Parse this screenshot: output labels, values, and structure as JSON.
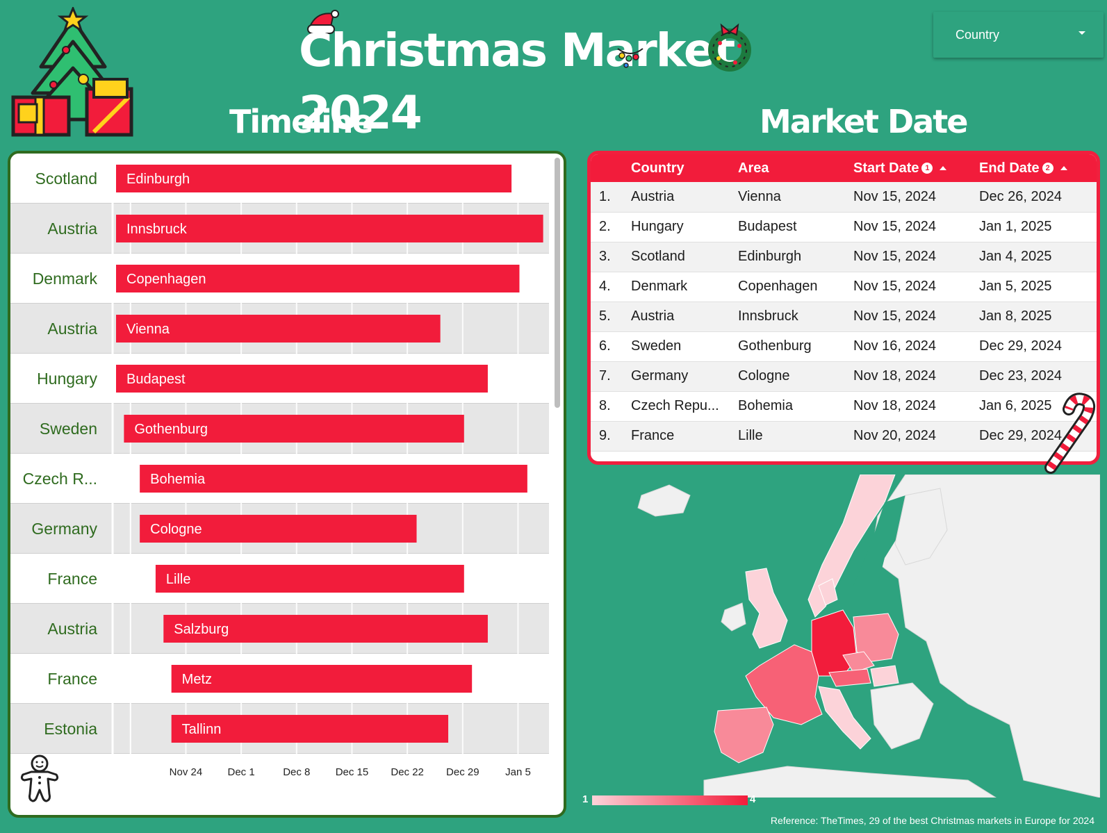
{
  "header": {
    "title": "Christmas Market 2024",
    "timeline_title": "Timeline",
    "market_title": "Market Date"
  },
  "filter": {
    "label": "Country"
  },
  "chart_data": {
    "type": "bar",
    "subtype": "gantt",
    "x_ticks": [
      "Nov 24",
      "Dec 1",
      "Dec 8",
      "Dec 15",
      "Dec 22",
      "Dec 29",
      "Jan 5"
    ],
    "xlim": [
      "2024-11-15",
      "2025-01-09"
    ],
    "grid": true,
    "rows": [
      {
        "country": "Scotland",
        "area": "Edinburgh",
        "start": "2024-11-15",
        "end": "2025-01-04"
      },
      {
        "country": "Austria",
        "area": "Innsbruck",
        "start": "2024-11-15",
        "end": "2025-01-08"
      },
      {
        "country": "Denmark",
        "area": "Copenhagen",
        "start": "2024-11-15",
        "end": "2025-01-05"
      },
      {
        "country": "Austria",
        "area": "Vienna",
        "start": "2024-11-15",
        "end": "2024-12-26"
      },
      {
        "country": "Hungary",
        "area": "Budapest",
        "start": "2024-11-15",
        "end": "2025-01-01"
      },
      {
        "country": "Sweden",
        "area": "Gothenburg",
        "start": "2024-11-16",
        "end": "2024-12-29"
      },
      {
        "country": "Czech R...",
        "area": "Bohemia",
        "start": "2024-11-18",
        "end": "2025-01-06"
      },
      {
        "country": "Germany",
        "area": "Cologne",
        "start": "2024-11-18",
        "end": "2024-12-23"
      },
      {
        "country": "France",
        "area": "Lille",
        "start": "2024-11-20",
        "end": "2024-12-29"
      },
      {
        "country": "Austria",
        "area": "Salzburg",
        "start": "2024-11-21",
        "end": "2025-01-01"
      },
      {
        "country": "France",
        "area": "Metz",
        "start": "2024-11-22",
        "end": "2024-12-30"
      },
      {
        "country": "Estonia",
        "area": "Tallinn",
        "start": "2024-11-22",
        "end": "2024-12-27"
      }
    ]
  },
  "table": {
    "headers": [
      "Country",
      "Area",
      "Start Date",
      "End Date"
    ],
    "sort_badges": [
      "1",
      "2"
    ],
    "rows": [
      {
        "n": "1.",
        "country": "Austria",
        "area": "Vienna",
        "start": "Nov 15, 2024",
        "end": "Dec 26, 2024"
      },
      {
        "n": "2.",
        "country": "Hungary",
        "area": "Budapest",
        "start": "Nov 15, 2024",
        "end": "Jan 1, 2025"
      },
      {
        "n": "3.",
        "country": "Scotland",
        "area": "Edinburgh",
        "start": "Nov 15, 2024",
        "end": "Jan 4, 2025"
      },
      {
        "n": "4.",
        "country": "Denmark",
        "area": "Copenhagen",
        "start": "Nov 15, 2024",
        "end": "Jan 5, 2025"
      },
      {
        "n": "5.",
        "country": "Austria",
        "area": "Innsbruck",
        "start": "Nov 15, 2024",
        "end": "Jan 8, 2025"
      },
      {
        "n": "6.",
        "country": "Sweden",
        "area": "Gothenburg",
        "start": "Nov 16, 2024",
        "end": "Dec 29, 2024"
      },
      {
        "n": "7.",
        "country": "Germany",
        "area": "Cologne",
        "start": "Nov 18, 2024",
        "end": "Dec 23, 2024"
      },
      {
        "n": "8.",
        "country": "Czech Repu...",
        "area": "Bohemia",
        "start": "Nov 18, 2024",
        "end": "Jan 6, 2025"
      },
      {
        "n": "9.",
        "country": "France",
        "area": "Lille",
        "start": "Nov 20, 2024",
        "end": "Dec 29, 2024"
      }
    ]
  },
  "map": {
    "legend_min": "1",
    "legend_max": "4",
    "reference": "Reference: TheTimes, 29 of the best Christmas markets in Europe for 2024"
  },
  "colors": {
    "background": "#2ea37f",
    "bar": "#f21c3b",
    "row_label": "#2f6b1f",
    "timeline_border": "#2f6b1f",
    "table_border": "#f0203e"
  },
  "icons": [
    "christmas-tree-icon",
    "santa-hat-icon",
    "wreath-icon",
    "ornaments-icon",
    "candy-cane-icon",
    "gingerbread-man-icon",
    "dropdown-arrow-icon"
  ]
}
